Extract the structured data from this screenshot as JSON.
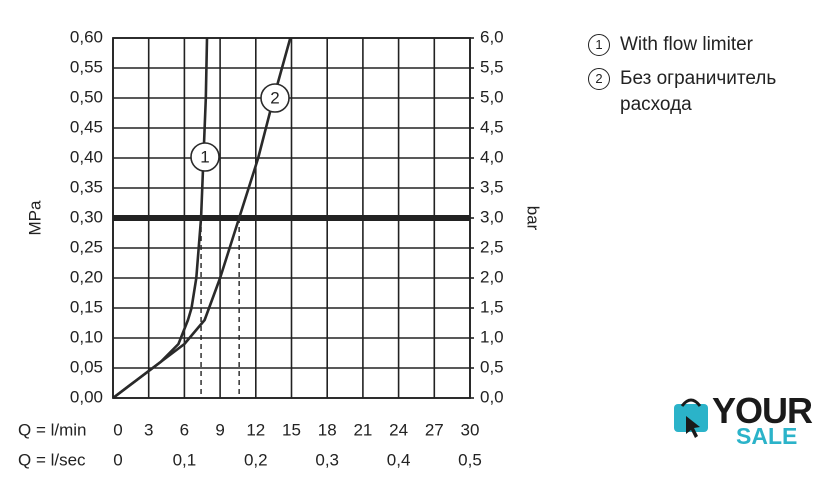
{
  "chart_data": {
    "type": "line",
    "ylabel": "MPa",
    "y2label": "bar",
    "xlabel": "Q = l/min",
    "x2label": "Q = l/sec",
    "xlim": [
      0,
      30
    ],
    "xticks": [
      0,
      3,
      6,
      9,
      12,
      15,
      18,
      21,
      24,
      27,
      30
    ],
    "x2lim": [
      0,
      0.5
    ],
    "x2ticks": [
      0,
      {
        "value": 0.1,
        "label": "0,1"
      },
      {
        "value": 0.2,
        "label": "0,2"
      },
      {
        "value": 0.3,
        "label": "0,3"
      },
      {
        "value": 0.4,
        "label": "0,4"
      },
      {
        "value": 0.5,
        "label": "0,5"
      }
    ],
    "ylim": [
      0,
      0.6
    ],
    "yticks": [
      {
        "value": 0,
        "label": "0,00"
      },
      {
        "value": 0.05,
        "label": "0,05"
      },
      {
        "value": 0.1,
        "label": "0,10"
      },
      {
        "value": 0.15,
        "label": "0,15"
      },
      {
        "value": 0.2,
        "label": "0,20"
      },
      {
        "value": 0.25,
        "label": "0,25"
      },
      {
        "value": 0.3,
        "label": "0,30"
      },
      {
        "value": 0.35,
        "label": "0,35"
      },
      {
        "value": 0.4,
        "label": "0,40"
      },
      {
        "value": 0.45,
        "label": "0,45"
      },
      {
        "value": 0.5,
        "label": "0,50"
      },
      {
        "value": 0.55,
        "label": "0,55"
      },
      {
        "value": 0.6,
        "label": "0,60"
      }
    ],
    "y2lim": [
      0,
      6
    ],
    "y2ticks": [
      {
        "value": 0,
        "label": "0,0"
      },
      {
        "value": 0.5,
        "label": "0,5"
      },
      {
        "value": 1,
        "label": "1,0"
      },
      {
        "value": 1.5,
        "label": "1,5"
      },
      {
        "value": 2,
        "label": "2,0"
      },
      {
        "value": 2.5,
        "label": "2,5"
      },
      {
        "value": 3,
        "label": "3,0"
      },
      {
        "value": 3.5,
        "label": "3,5"
      },
      {
        "value": 4,
        "label": "4,0"
      },
      {
        "value": 4.5,
        "label": "4,5"
      },
      {
        "value": 5,
        "label": "5,0"
      },
      {
        "value": 5.5,
        "label": "5,5"
      },
      {
        "value": 6,
        "label": "6,0"
      }
    ],
    "grid": true,
    "reference_line": 0.3,
    "drop_lines_x": [
      7.4,
      10.6
    ],
    "series": [
      {
        "name": "With flow limiter",
        "marker_label": "1",
        "color": "#2a2a2a",
        "x": [
          0,
          2,
          4,
          5.5,
          6.3,
          6.6,
          7.0,
          7.4,
          7.6,
          7.8,
          7.9
        ],
        "values": [
          0,
          0.03,
          0.06,
          0.09,
          0.13,
          0.15,
          0.2,
          0.3,
          0.4,
          0.5,
          0.6
        ]
      },
      {
        "name": "Без ограничитель расхода",
        "marker_label": "2",
        "color": "#2a2a2a",
        "x": [
          0,
          2,
          4,
          6,
          7.7,
          9,
          10.6,
          12.2,
          13.5,
          14.9
        ],
        "values": [
          0,
          0.03,
          0.06,
          0.09,
          0.13,
          0.2,
          0.3,
          0.4,
          0.5,
          0.6
        ]
      }
    ]
  },
  "watermark": {
    "line1": "YOUR",
    "line2": "SALE"
  }
}
